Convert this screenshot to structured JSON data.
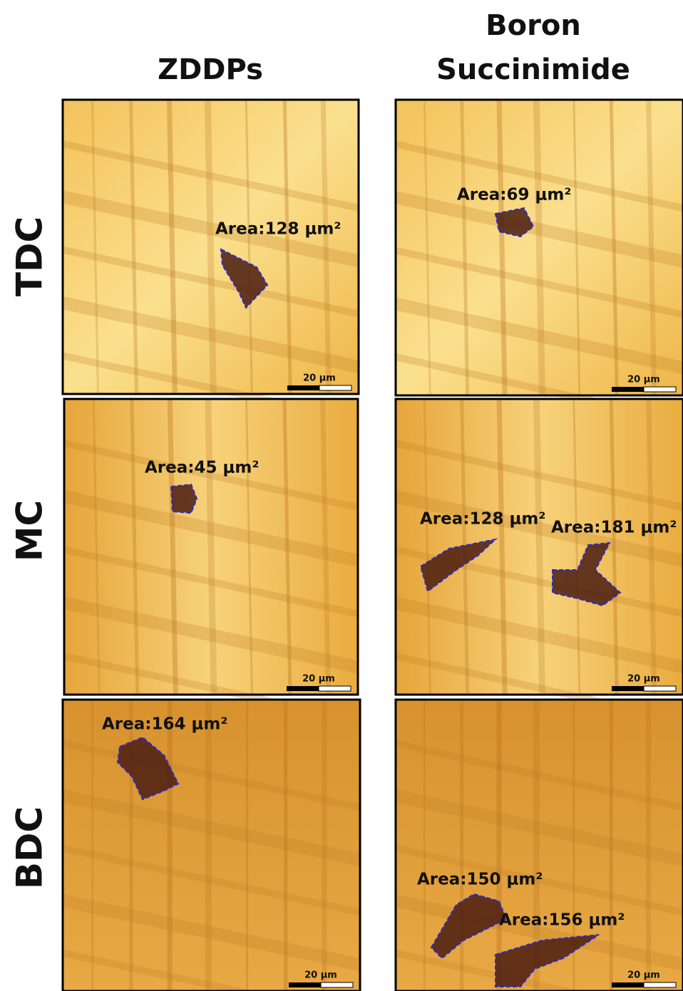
{
  "columns": [
    {
      "lines": [
        "ZDDPs"
      ]
    },
    {
      "lines": [
        "Boron",
        "Succinimide"
      ]
    }
  ],
  "rows": [
    "TDC",
    "MC",
    "BDC"
  ],
  "panels": [
    [
      {
        "areas": [
          "Area:128 μm²"
        ],
        "scale_bar": "20 µm"
      },
      {
        "areas": [
          "Area:69 μm²"
        ],
        "scale_bar": "20 µm"
      }
    ],
    [
      {
        "areas": [
          "Area:45 μm²"
        ],
        "scale_bar": "20 µm"
      },
      {
        "areas": [
          "Area:128 μm²",
          "Area:181 μm²"
        ],
        "scale_bar": "20 µm"
      }
    ],
    [
      {
        "areas": [
          "Area:164 μm²"
        ],
        "scale_bar": "20 µm"
      },
      {
        "areas": [
          "Area:150 μm²",
          "Area:156 μm²"
        ],
        "scale_bar": "20 µm"
      }
    ]
  ]
}
